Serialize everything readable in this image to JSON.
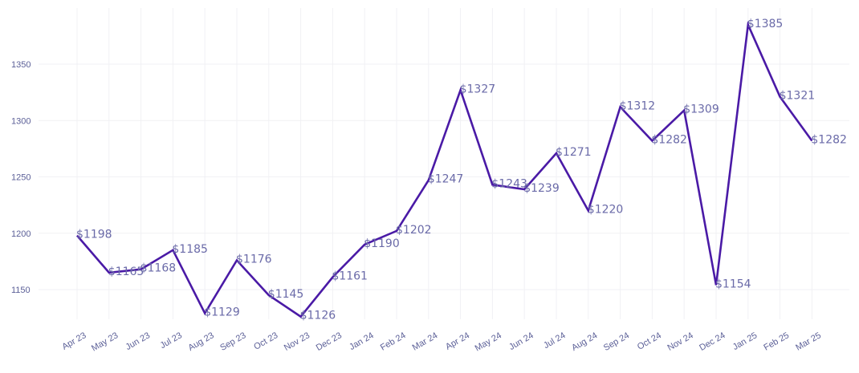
{
  "chart_data": {
    "type": "line",
    "title": "",
    "xlabel": "",
    "ylabel": "",
    "categories": [
      "Apr 23",
      "May 23",
      "Jun 23",
      "Jul 23",
      "Aug 23",
      "Sep 23",
      "Oct 23",
      "Nov 23",
      "Dec 23",
      "Jan 24",
      "Feb 24",
      "Mar 24",
      "Apr 24",
      "May 24",
      "Jun 24",
      "Jul 24",
      "Aug 24",
      "Sep 24",
      "Oct 24",
      "Nov 24",
      "Dec 24",
      "Jan 25",
      "Feb 25",
      "Mar 25"
    ],
    "series": [
      {
        "values": [
          1198,
          1165,
          1168,
          1185,
          1129,
          1176,
          1145,
          1126,
          1161,
          1190,
          1202,
          1247,
          1327,
          1243,
          1239,
          1271,
          1220,
          1312,
          1282,
          1309,
          1154,
          1385,
          1321,
          1282
        ],
        "labels": [
          "$1198",
          "$1165",
          "$1168",
          "$1185",
          "$1129",
          "$1176",
          "$1145",
          "$1126",
          "$1161",
          "$1190",
          "$1202",
          "$1247",
          "$1327",
          "$1243",
          "$1239",
          "$1271",
          "$1220",
          "$1312",
          "$1282",
          "$1309",
          "$1154",
          "$1385",
          "$1321",
          "$1282"
        ],
        "color": "#4a1aa6"
      }
    ],
    "yticks": [
      1150,
      1200,
      1250,
      1300,
      1350
    ],
    "ylim": [
      1115,
      1400
    ],
    "grid": true,
    "legend": "none"
  }
}
